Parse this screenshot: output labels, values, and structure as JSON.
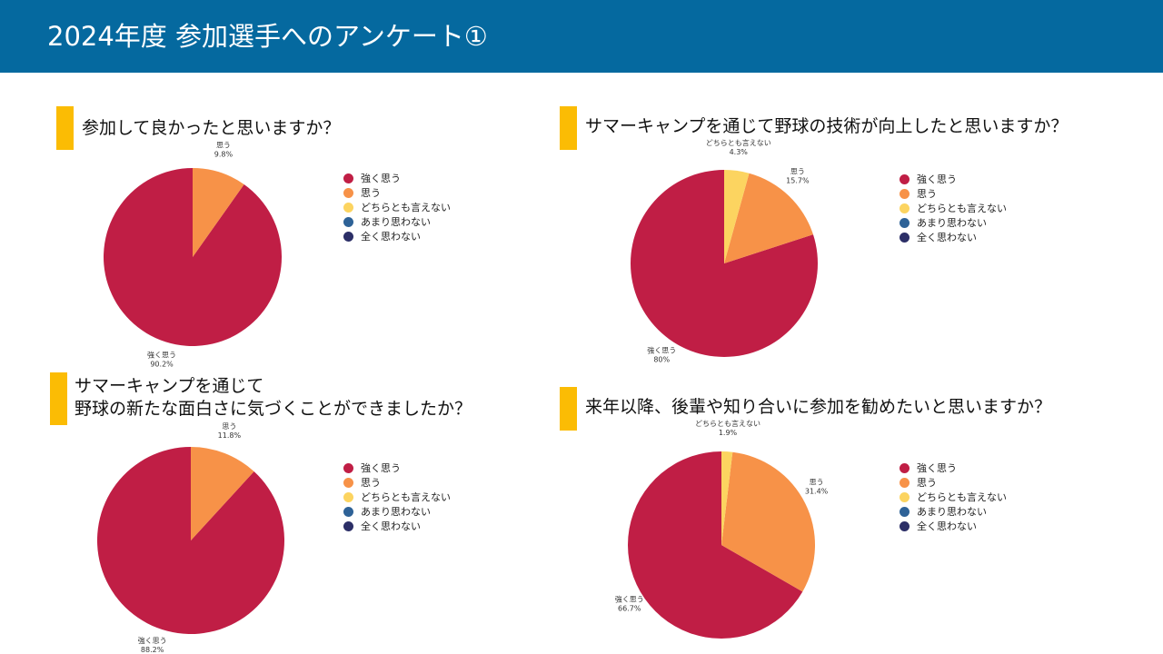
{
  "header": {
    "title": "2024年度 参加選手へのアンケート①"
  },
  "legend": {
    "items": [
      {
        "label": "強く思う",
        "color": "#c01e45"
      },
      {
        "label": "思う",
        "color": "#f79248"
      },
      {
        "label": "どちらとも言えない",
        "color": "#fcd460"
      },
      {
        "label": "あまり思わない",
        "color": "#2e6297"
      },
      {
        "label": "全く思わない",
        "color": "#2c2f67"
      }
    ]
  },
  "chart_data": [
    {
      "type": "pie",
      "title": [
        "参加して良かったと思いますか？"
      ],
      "labels": [
        "強く思う",
        "思う"
      ],
      "values": [
        90.2,
        9.8
      ],
      "value_labels": [
        "90.2%",
        "9.8%"
      ],
      "colors": [
        "#c01e45",
        "#f79248"
      ],
      "legend_position": "right"
    },
    {
      "type": "pie",
      "title": [
        "サマーキャンプを通じて野球の技術が向上したと思いますか？"
      ],
      "labels": [
        "強く思う",
        "思う",
        "どちらとも言えない"
      ],
      "values": [
        80,
        15.7,
        4.3
      ],
      "value_labels": [
        "80%",
        "15.7%",
        "4.3%"
      ],
      "colors": [
        "#c01e45",
        "#f79248",
        "#fcd460"
      ],
      "legend_position": "right"
    },
    {
      "type": "pie",
      "title": [
        "サマーキャンプを通じて",
        "野球の新たな面白さに気づくことができましたか？"
      ],
      "labels": [
        "強く思う",
        "思う"
      ],
      "values": [
        88.2,
        11.8
      ],
      "value_labels": [
        "88.2%",
        "11.8%"
      ],
      "colors": [
        "#c01e45",
        "#f79248"
      ],
      "legend_position": "right"
    },
    {
      "type": "pie",
      "title": [
        "来年以降、後輩や知り合いに参加を勧めたいと思いますか？"
      ],
      "labels": [
        "強く思う",
        "思う",
        "どちらとも言えない"
      ],
      "values": [
        66.7,
        31.4,
        1.9
      ],
      "value_labels": [
        "66.7%",
        "31.4%",
        "1.9%"
      ],
      "colors": [
        "#c01e45",
        "#f79248",
        "#fcd460"
      ],
      "legend_position": "right"
    }
  ]
}
